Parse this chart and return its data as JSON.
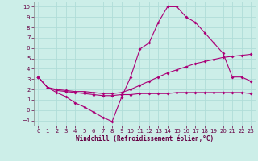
{
  "xlabel": "Windchill (Refroidissement éolien,°C)",
  "bg_color": "#cceee8",
  "grid_color": "#b0ddd8",
  "line_color": "#aa0077",
  "xlim": [
    -0.5,
    23.5
  ],
  "ylim": [
    -1.5,
    10.5
  ],
  "xticks": [
    0,
    1,
    2,
    3,
    4,
    5,
    6,
    7,
    8,
    9,
    10,
    11,
    12,
    13,
    14,
    15,
    16,
    17,
    18,
    19,
    20,
    21,
    22,
    23
  ],
  "yticks": [
    -1,
    0,
    1,
    2,
    3,
    4,
    5,
    6,
    7,
    8,
    9,
    10
  ],
  "line1_x": [
    0,
    1,
    2,
    3,
    4,
    5,
    6,
    7,
    8,
    9,
    10,
    11,
    12,
    13,
    14,
    15,
    16,
    17,
    18,
    19,
    20,
    21,
    22,
    23
  ],
  "line1_y": [
    3.2,
    2.2,
    1.7,
    1.3,
    0.7,
    0.3,
    -0.2,
    -0.7,
    -1.1,
    1.2,
    3.2,
    5.9,
    6.5,
    8.5,
    10.0,
    10.0,
    9.0,
    8.5,
    7.5,
    6.5,
    5.5,
    3.2,
    3.2,
    2.8
  ],
  "line2_x": [
    0,
    1,
    2,
    3,
    4,
    5,
    6,
    7,
    8,
    9,
    10,
    11,
    12,
    13,
    14,
    15,
    16,
    17,
    18,
    19,
    20,
    21,
    22,
    23
  ],
  "line2_y": [
    3.2,
    2.2,
    2.0,
    1.9,
    1.8,
    1.8,
    1.7,
    1.6,
    1.6,
    1.7,
    2.0,
    2.4,
    2.8,
    3.2,
    3.6,
    3.9,
    4.2,
    4.5,
    4.7,
    4.9,
    5.1,
    5.2,
    5.3,
    5.4
  ],
  "line3_x": [
    0,
    1,
    2,
    3,
    4,
    5,
    6,
    7,
    8,
    9,
    10,
    11,
    12,
    13,
    14,
    15,
    16,
    17,
    18,
    19,
    20,
    21,
    22,
    23
  ],
  "line3_y": [
    3.2,
    2.2,
    1.9,
    1.8,
    1.7,
    1.6,
    1.5,
    1.4,
    1.4,
    1.5,
    1.5,
    1.6,
    1.6,
    1.6,
    1.6,
    1.7,
    1.7,
    1.7,
    1.7,
    1.7,
    1.7,
    1.7,
    1.7,
    1.6
  ],
  "xlabel_fontsize": 5.5,
  "tick_fontsize": 5.0
}
